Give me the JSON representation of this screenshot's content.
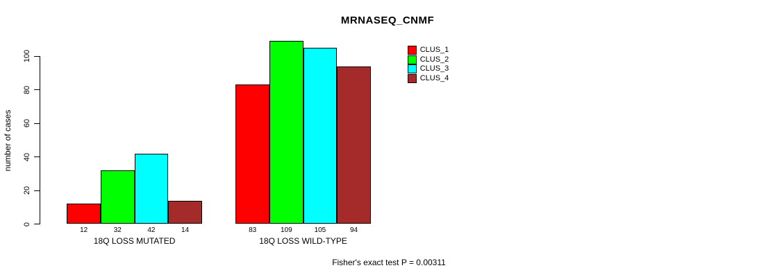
{
  "title": "MRNASEQ_CNMF",
  "footer_note": "Fisher's exact test P = 0.00311",
  "y_axis": {
    "label": "number of cases",
    "ticks": [
      0,
      20,
      40,
      60,
      80,
      100
    ]
  },
  "legend": {
    "entries": [
      {
        "label": "CLUS_1",
        "color": "#FF0000"
      },
      {
        "label": "CLUS_2",
        "color": "#00FF00"
      },
      {
        "label": "CLUS_3",
        "color": "#00FFFF"
      },
      {
        "label": "CLUS_4",
        "color": "#A52A2A"
      }
    ]
  },
  "chart_data": {
    "type": "bar",
    "title": "MRNASEQ_CNMF",
    "xlabel": "",
    "ylabel": "number of cases",
    "ylim": [
      0,
      110
    ],
    "grid": false,
    "legend_position": "top-right-inside",
    "categories": [
      "18Q LOSS MUTATED",
      "18Q LOSS WILD-TYPE"
    ],
    "series": [
      {
        "name": "CLUS_1",
        "color": "#FF0000",
        "values": [
          12,
          83
        ]
      },
      {
        "name": "CLUS_2",
        "color": "#00FF00",
        "values": [
          32,
          109
        ]
      },
      {
        "name": "CLUS_3",
        "color": "#00FFFF",
        "values": [
          42,
          105
        ]
      },
      {
        "name": "CLUS_4",
        "color": "#A52A2A",
        "values": [
          14,
          94
        ]
      }
    ],
    "bar_value_labels": {
      "18Q LOSS MUTATED": [
        12,
        32,
        42,
        14
      ],
      "18Q LOSS WILD-TYPE": [
        83,
        109,
        105,
        94
      ]
    },
    "annotation": "Fisher's exact test P = 0.00311",
    "bar_border_color": "#000000"
  }
}
